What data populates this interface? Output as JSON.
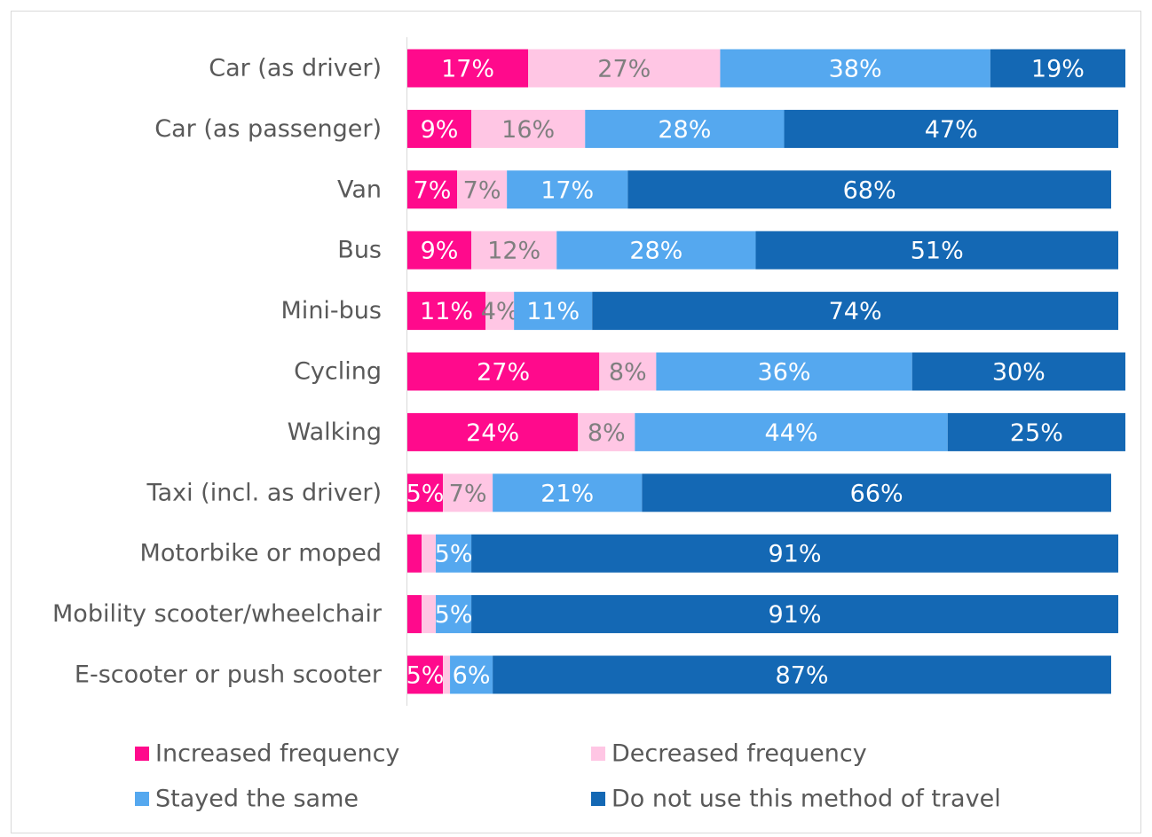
{
  "chart_data": {
    "type": "stacked-bar-horizontal",
    "categories": [
      "Car (as driver)",
      "Car (as passenger)",
      "Van",
      "Bus",
      "Mini-bus",
      "Cycling",
      "Walking",
      "Taxi (incl. as driver)",
      "Motorbike or moped",
      "Mobility scooter/wheelchair",
      "E-scooter or push scooter"
    ],
    "series": [
      {
        "name": "Increased frequency",
        "color": "#ff0a8c",
        "label_color": "#ffffff",
        "values": [
          17,
          9,
          7,
          9,
          11,
          27,
          24,
          5,
          2,
          2,
          5
        ],
        "value_labels": [
          "17%",
          "9%",
          "7%",
          "9%",
          "11%",
          "27%",
          "24%",
          "5%",
          null,
          null,
          "5%"
        ]
      },
      {
        "name": "Decreased frequency",
        "color": "#ffc6e4",
        "label_color": "#7f7f7f",
        "values": [
          27,
          16,
          7,
          12,
          4,
          8,
          8,
          7,
          2,
          2,
          1
        ],
        "value_labels": [
          "27%",
          "16%",
          "7%",
          "12%",
          "4%",
          "8%",
          "8%",
          "7%",
          null,
          null,
          null
        ]
      },
      {
        "name": "Stayed the same",
        "color": "#55a8ef",
        "label_color": "#ffffff",
        "values": [
          38,
          28,
          17,
          28,
          11,
          36,
          44,
          21,
          5,
          5,
          6
        ],
        "value_labels": [
          "38%",
          "28%",
          "17%",
          "28%",
          "11%",
          "36%",
          "44%",
          "21%",
          "5%",
          "5%",
          "6%"
        ]
      },
      {
        "name": "Do not use this method of travel",
        "color": "#1468b4",
        "label_color": "#ffffff",
        "values": [
          19,
          47,
          68,
          51,
          74,
          30,
          25,
          66,
          91,
          91,
          87
        ],
        "value_labels": [
          "19%",
          "47%",
          "68%",
          "51%",
          "74%",
          "30%",
          "25%",
          "66%",
          "91%",
          "91%",
          "87%"
        ]
      }
    ]
  }
}
